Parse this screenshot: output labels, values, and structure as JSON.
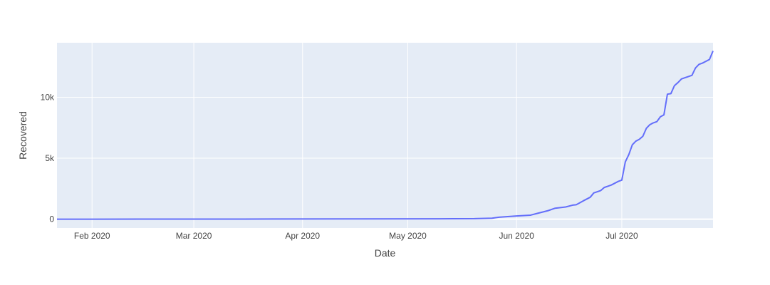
{
  "chart_data": {
    "type": "line",
    "title": "",
    "xlabel": "Date",
    "ylabel": "Recovered",
    "x_tick_labels": [
      "Feb 2020",
      "Mar 2020",
      "Apr 2020",
      "May 2020",
      "Jun 2020",
      "Jul 2020"
    ],
    "x_tick_dates": [
      "2020-02-01",
      "2020-03-01",
      "2020-04-01",
      "2020-05-01",
      "2020-06-01",
      "2020-07-01"
    ],
    "y_tick_labels": [
      "0",
      "5k",
      "10k"
    ],
    "y_tick_values": [
      0,
      5000,
      10000
    ],
    "xlim": [
      "2020-01-22",
      "2020-07-27"
    ],
    "ylim": [
      -724,
      14469
    ],
    "grid": true,
    "colors": {
      "plot_bg": "#e5ecf6",
      "grid": "#ffffff",
      "line": "#636efa",
      "text": "#444444"
    },
    "series": [
      {
        "x": [
          "2020-01-22",
          "2020-02-15",
          "2020-03-15",
          "2020-04-15",
          "2020-05-10",
          "2020-05-20",
          "2020-05-25",
          "2020-05-27",
          "2020-06-01",
          "2020-06-05",
          "2020-06-07",
          "2020-06-10",
          "2020-06-12",
          "2020-06-15",
          "2020-06-17",
          "2020-06-18",
          "2020-06-20",
          "2020-06-22",
          "2020-06-23",
          "2020-06-25",
          "2020-06-26",
          "2020-06-27",
          "2020-06-28",
          "2020-06-30",
          "2020-07-01",
          "2020-07-02",
          "2020-07-03",
          "2020-07-04",
          "2020-07-05",
          "2020-07-06",
          "2020-07-07",
          "2020-07-08",
          "2020-07-09",
          "2020-07-10",
          "2020-07-11",
          "2020-07-12",
          "2020-07-13",
          "2020-07-14",
          "2020-07-15",
          "2020-07-16",
          "2020-07-17",
          "2020-07-18",
          "2020-07-19",
          "2020-07-20",
          "2020-07-21",
          "2020-07-22",
          "2020-07-23",
          "2020-07-24",
          "2020-07-25",
          "2020-07-26",
          "2020-07-27"
        ],
        "y": [
          0,
          3,
          10,
          20,
          30,
          40,
          80,
          160,
          260,
          330,
          480,
          700,
          900,
          1000,
          1150,
          1180,
          1500,
          1800,
          2150,
          2350,
          2600,
          2700,
          2800,
          3100,
          3200,
          4700,
          5300,
          6100,
          6400,
          6550,
          6800,
          7450,
          7750,
          7900,
          8000,
          8400,
          8550,
          10250,
          10300,
          10950,
          11200,
          11500,
          11600,
          11700,
          11800,
          12400,
          12700,
          12800,
          12950,
          13100,
          13800
        ]
      }
    ]
  }
}
